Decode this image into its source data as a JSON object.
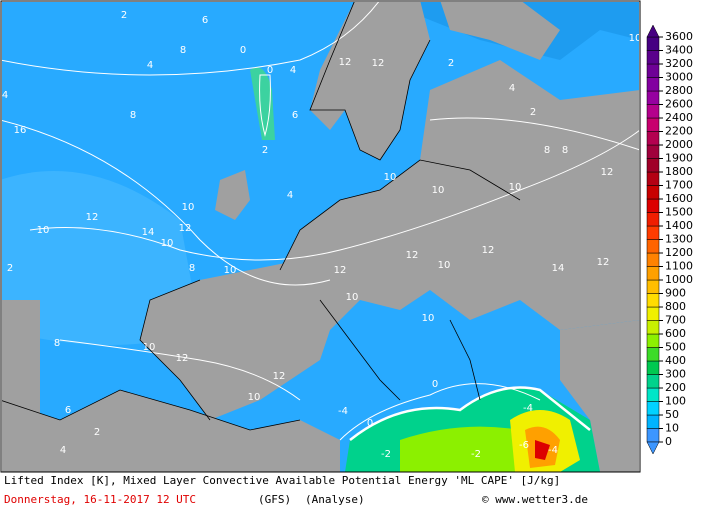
{
  "map": {
    "contour_labels": [
      "2",
      "6",
      "8",
      "4",
      "0",
      "0",
      "4",
      "4",
      "8",
      "16",
      "2",
      "6",
      "12",
      "12",
      "2",
      "4",
      "2",
      "8",
      "12",
      "10",
      "10",
      "10",
      "4",
      "10",
      "12",
      "10",
      "14",
      "12",
      "10",
      "2",
      "8",
      "10",
      "12",
      "12",
      "10",
      "12",
      "14",
      "12",
      "10",
      "10",
      "8",
      "10",
      "12",
      "12",
      "10",
      "0",
      "-4",
      "0",
      "-2",
      "-2",
      "-4",
      "-6",
      "-4",
      "8",
      "10",
      "6",
      "2",
      "4"
    ],
    "colorbar": {
      "ticks": [
        0,
        10,
        50,
        100,
        200,
        300,
        400,
        500,
        600,
        700,
        800,
        900,
        1000,
        1100,
        1200,
        1300,
        1400,
        1500,
        1600,
        1700,
        1800,
        1900,
        2000,
        2200,
        2400,
        2600,
        2800,
        3000,
        3200,
        3400,
        3600
      ],
      "colors": [
        "#3c96ff",
        "#00b4ff",
        "#00d2ff",
        "#00e6c8",
        "#00d28c",
        "#00c850",
        "#3cdc28",
        "#8cf000",
        "#c8f000",
        "#f0f000",
        "#ffdc00",
        "#ffbe00",
        "#ffa000",
        "#ff8200",
        "#ff6400",
        "#ff3c00",
        "#f01e00",
        "#dc0000",
        "#c80000",
        "#b40014",
        "#a00028",
        "#a0003c",
        "#b40050",
        "#c8006e",
        "#b4008c",
        "#9600a0",
        "#8200a0",
        "#6e0096",
        "#5a008c",
        "#460082"
      ]
    },
    "footer": {
      "line1": "Lifted Index [K], Mixed Layer Convective Available Potential Energy 'ML CAPE' [J/kg]",
      "date": "Donnerstag, 16-11-2017  12 UTC",
      "model": "(GFS)",
      "run": "(Analyse)",
      "credit": "© www.wetter3.de"
    }
  }
}
